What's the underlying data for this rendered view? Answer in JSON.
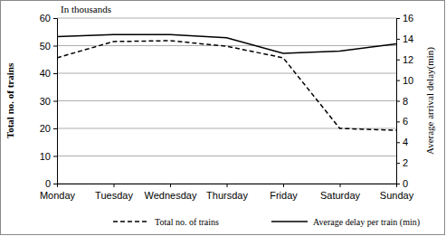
{
  "chart_data": {
    "type": "line",
    "categories": [
      "Monday",
      "Tuesday",
      "Wednesday",
      "Thursday",
      "Friday",
      "Saturday",
      "Sunday"
    ],
    "y_label": "Total no. of trains",
    "y2_label": "Average arrival delay(min)",
    "annotations": [
      "In thousands"
    ],
    "series": [
      {
        "name": "Total no. of trains",
        "color": "#000000",
        "line_style": "dashed",
        "values": [
          45.6,
          51.5,
          51.8,
          49.8,
          45.6,
          20,
          19.3
        ]
      },
      {
        "name": "Average delay per train (min)",
        "color": "#000000",
        "line_style": "solid",
        "axis": "y2",
        "values": [
          14.2,
          14.4,
          14.4,
          14.1,
          12.6,
          12.8,
          13.5
        ]
      }
    ],
    "ylim": [
      0,
      60
    ],
    "yticks": [
      0,
      10,
      20,
      30,
      40,
      50,
      60
    ],
    "y2lim": [
      0,
      16
    ],
    "y2ticks": [
      0,
      2,
      4,
      6,
      8,
      10,
      12,
      14,
      16
    ],
    "grid": true,
    "legend": "bottom"
  }
}
